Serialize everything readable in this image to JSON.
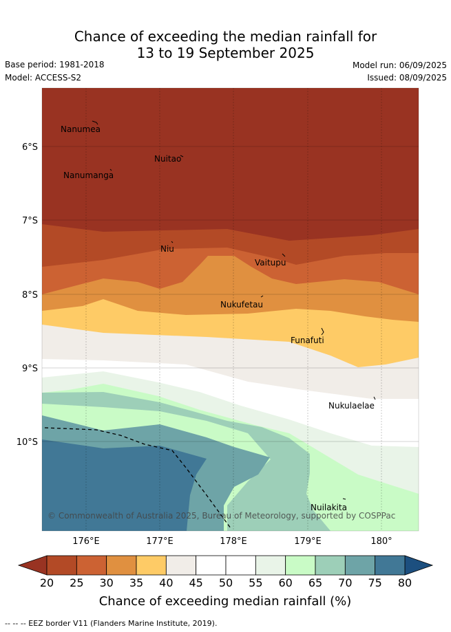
{
  "header": {
    "title_line1": "Chance of exceeding the median rainfall for",
    "title_line2": "13 to 19 September 2025",
    "base_period": "Base period: 1981-2018",
    "model": "Model: ACCESS-S2",
    "model_run": "Model run: 06/09/2025",
    "issued": "Issued: 08/09/2025"
  },
  "map": {
    "lat_ticks": [
      "6°S",
      "7°S",
      "8°S",
      "9°S",
      "10°S"
    ],
    "lon_ticks": [
      "176°E",
      "177°E",
      "178°E",
      "179°E",
      "180°"
    ],
    "places": [
      "Nanumea",
      "Nuitao",
      "Nanumanga",
      "Niu",
      "Vaitupu",
      "Nukufetau",
      "Funafuti",
      "Nukulaelae",
      "Nuilakita"
    ],
    "copyright": "© Commonwealth of Australia 2025, Bureau of Meteorology, supported by COSPPac"
  },
  "legend": {
    "title": "Chance of exceeding median rainfall (%)",
    "ticks": [
      "20",
      "25",
      "30",
      "35",
      "40",
      "45",
      "50",
      "55",
      "60",
      "65",
      "70",
      "75",
      "80"
    ],
    "colors": [
      "#b34a26",
      "#cc6233",
      "#e09040",
      "#fecb66",
      "#f1ede8",
      "#ffffff",
      "#ffffff",
      "#e9f4e8",
      "#c9fbc6",
      "#9dcfb8",
      "#6ea4a7",
      "#417896"
    ],
    "low_color": "#993322",
    "high_color": "#1c4f7f"
  },
  "footnote": "--  --  -- EEZ border V11 (Flanders Marine Institute, 2019)."
}
